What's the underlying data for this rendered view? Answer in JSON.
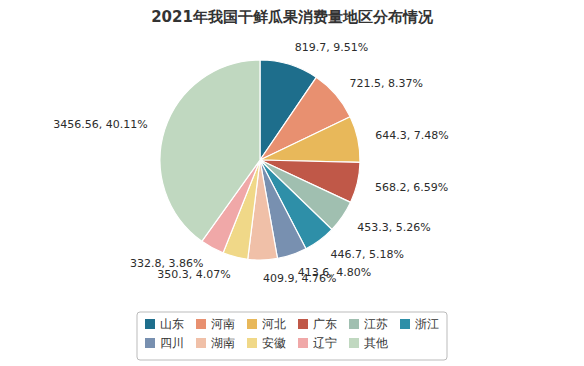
{
  "chart_data": {
    "type": "pie",
    "title": "2021年我国干鲜瓜果消费量地区分布情况",
    "categories": [
      "山东",
      "河南",
      "河北",
      "广东",
      "江苏",
      "浙江",
      "四川",
      "湖南",
      "安徽",
      "辽宁",
      "其他"
    ],
    "values": [
      819.7,
      721.5,
      644.3,
      568.2,
      453.3,
      446.7,
      413.6,
      409.9,
      350.3,
      332.8,
      3456.56
    ],
    "value_labels": [
      "819.7, 9.51%",
      "721.5, 8.37%",
      "644.3, 7.48%",
      "568.2, 6.59%",
      "453.3, 5.26%",
      "446.7, 5.18%",
      "413.6, 4.80%",
      "409.9, 4.76%",
      "350.3, 4.07%",
      "332.8, 3.86%",
      "3456.56, 40.11%"
    ],
    "colors": [
      "#1e6e8c",
      "#e89070",
      "#e8b85a",
      "#c05848",
      "#a0bfb0",
      "#2e8fa8",
      "#7890b0",
      "#f0c0a8",
      "#f0d888",
      "#f0a8a8",
      "#c0d8c0"
    ],
    "data_labels": true,
    "legend": "bottom"
  }
}
